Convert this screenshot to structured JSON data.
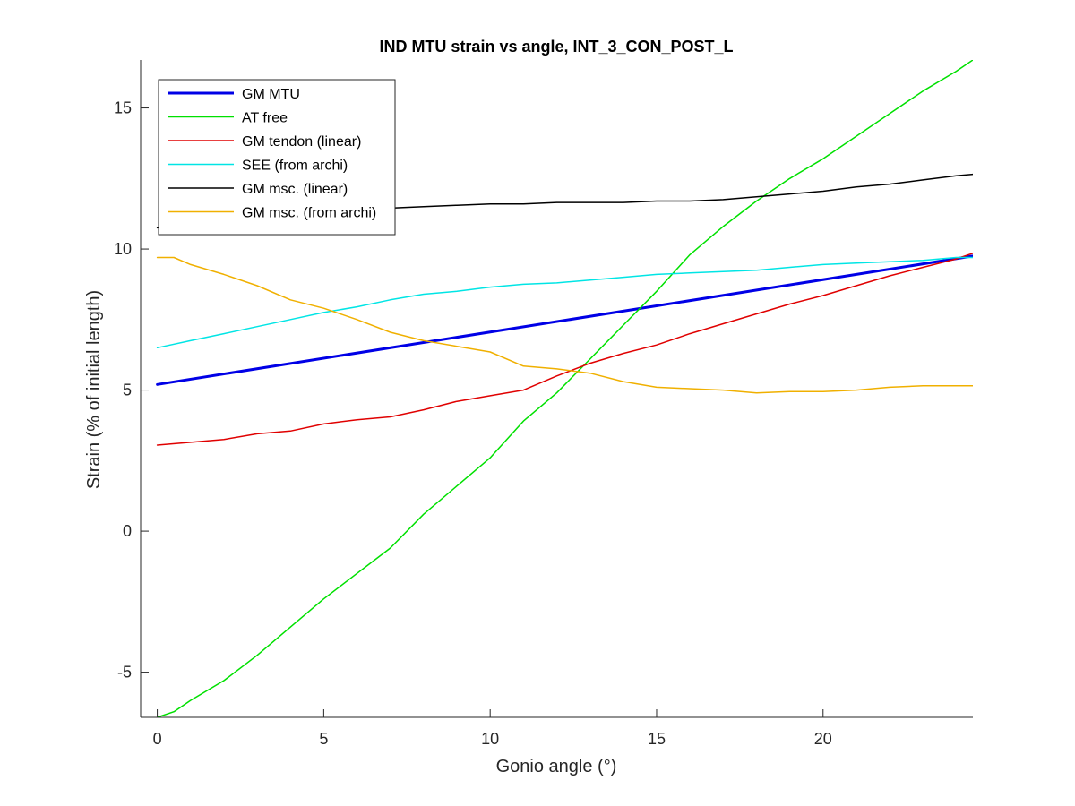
{
  "chart_data": {
    "type": "line",
    "title": "IND MTU strain vs angle, INT_3_CON_POST_L",
    "xlabel": "Gonio angle (°)",
    "ylabel": "Strain (% of initial length)",
    "xlim": [
      -0.5,
      24.5
    ],
    "ylim": [
      -6.6,
      16.7
    ],
    "xticks": [
      0,
      5,
      10,
      15,
      20
    ],
    "yticks": [
      -5,
      0,
      5,
      10,
      15
    ],
    "xtick_labels": [
      "0",
      "5",
      "10",
      "15",
      "20"
    ],
    "ytick_labels": [
      "-5",
      "0",
      "5",
      "10",
      "15"
    ],
    "grid": false,
    "legend_position": "top-left",
    "series": [
      {
        "name": "GM MTU",
        "color": "#0000e6",
        "line_width": 3,
        "x": [
          0,
          24.5
        ],
        "y": [
          5.2,
          9.75
        ]
      },
      {
        "name": "AT free",
        "color": "#00e000",
        "line_width": 1.5,
        "x": [
          0,
          0.5,
          1,
          2,
          3,
          4,
          5,
          6,
          7,
          8,
          9,
          10,
          11,
          12,
          13,
          14,
          15,
          16,
          17,
          18,
          19,
          20,
          21,
          22,
          23,
          24,
          24.5
        ],
        "y": [
          -6.6,
          -6.4,
          -6.0,
          -5.3,
          -4.4,
          -3.4,
          -2.4,
          -1.5,
          -0.6,
          0.6,
          1.6,
          2.6,
          3.9,
          4.9,
          6.1,
          7.3,
          8.5,
          9.8,
          10.8,
          11.7,
          12.5,
          13.2,
          14.0,
          14.8,
          15.6,
          16.3,
          16.7
        ]
      },
      {
        "name": "GM tendon (linear)",
        "color": "#e00000",
        "line_width": 1.5,
        "x": [
          0,
          1,
          2,
          3,
          4,
          5,
          6,
          7,
          8,
          9,
          10,
          11,
          12,
          13,
          14,
          15,
          16,
          17,
          18,
          19,
          20,
          21,
          22,
          23,
          24,
          24.5
        ],
        "y": [
          3.05,
          3.15,
          3.25,
          3.45,
          3.55,
          3.8,
          3.95,
          4.05,
          4.3,
          4.6,
          4.8,
          5.0,
          5.5,
          5.95,
          6.3,
          6.6,
          7.0,
          7.35,
          7.7,
          8.05,
          8.35,
          8.7,
          9.05,
          9.35,
          9.65,
          9.85
        ]
      },
      {
        "name": "SEE (from archi)",
        "color": "#00e5e5",
        "line_width": 1.5,
        "x": [
          0,
          1,
          2,
          3,
          4,
          5,
          6,
          7,
          8,
          9,
          10,
          11,
          12,
          13,
          14,
          15,
          16,
          17,
          18,
          19,
          20,
          21,
          22,
          23,
          24,
          24.5
        ],
        "y": [
          6.5,
          6.75,
          7.0,
          7.25,
          7.5,
          7.75,
          7.95,
          8.2,
          8.4,
          8.5,
          8.65,
          8.75,
          8.8,
          8.9,
          9.0,
          9.1,
          9.15,
          9.2,
          9.25,
          9.35,
          9.45,
          9.5,
          9.55,
          9.6,
          9.7,
          9.7
        ]
      },
      {
        "name": "GM msc. (linear)",
        "color": "#000000",
        "line_width": 1.5,
        "x": [
          0,
          1,
          2,
          3,
          4,
          5,
          6,
          7,
          8,
          9,
          10,
          11,
          12,
          13,
          14,
          15,
          16,
          17,
          18,
          19,
          20,
          21,
          22,
          23,
          24,
          24.5
        ],
        "y": [
          10.75,
          10.95,
          11.1,
          11.2,
          11.3,
          11.35,
          11.4,
          11.45,
          11.5,
          11.55,
          11.6,
          11.6,
          11.65,
          11.65,
          11.65,
          11.7,
          11.7,
          11.75,
          11.85,
          11.95,
          12.05,
          12.2,
          12.3,
          12.45,
          12.6,
          12.65
        ]
      },
      {
        "name": "GM msc. (from archi)",
        "color": "#f0b000",
        "line_width": 1.5,
        "x": [
          0,
          0.5,
          1,
          2,
          3,
          4,
          5,
          6,
          7,
          8,
          9,
          10,
          11,
          12,
          13,
          14,
          15,
          16,
          17,
          18,
          19,
          20,
          21,
          22,
          23,
          24,
          24.5
        ],
        "y": [
          9.7,
          9.7,
          9.45,
          9.1,
          8.7,
          8.2,
          7.9,
          7.5,
          7.05,
          6.75,
          6.55,
          6.35,
          5.85,
          5.75,
          5.6,
          5.3,
          5.1,
          5.05,
          5.0,
          4.9,
          4.95,
          4.95,
          5.0,
          5.1,
          5.15,
          5.15,
          5.15
        ]
      }
    ]
  }
}
